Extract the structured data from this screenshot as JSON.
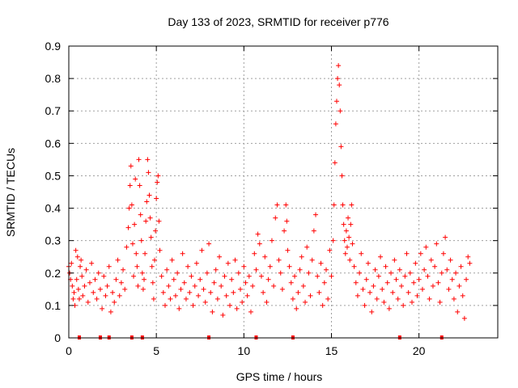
{
  "chart_data": {
    "type": "scatter",
    "title": "Day 133 of 2023, SRMTID for receiver p776",
    "xlabel": "GPS time / hours",
    "ylabel": "SRMTID / TECUs",
    "xlim": [
      0,
      24.5
    ],
    "ylim": [
      0,
      0.9
    ],
    "xticks": [
      0,
      5,
      10,
      15,
      20
    ],
    "xtick_labels": [
      "0",
      "5",
      "10",
      "15",
      "20"
    ],
    "yticks": [
      0,
      0.1,
      0.2,
      0.3,
      0.4,
      0.5,
      0.6,
      0.7,
      0.8,
      0.9
    ],
    "ytick_labels": [
      "0",
      "0.1",
      "0.2",
      "0.3",
      "0.4",
      "0.5",
      "0.6",
      "0.7",
      "0.8",
      "0.9"
    ],
    "grid": true,
    "marker": "+",
    "color": "#ff0000",
    "series": [
      {
        "name": "SRMTID",
        "points": [
          [
            0.0,
            0.22
          ],
          [
            0.05,
            0.2
          ],
          [
            0.1,
            0.18
          ],
          [
            0.15,
            0.23
          ],
          [
            0.2,
            0.16
          ],
          [
            0.25,
            0.12
          ],
          [
            0.3,
            0.14
          ],
          [
            0.35,
            0.1
          ],
          [
            0.4,
            0.27
          ],
          [
            0.45,
            0.18
          ],
          [
            0.5,
            0.25
          ],
          [
            0.55,
            0.15
          ],
          [
            0.6,
            0.12
          ],
          [
            0.65,
            0.22
          ],
          [
            0.7,
            0.24
          ],
          [
            0.75,
            0.19
          ],
          [
            0.8,
            0.13
          ],
          [
            0.9,
            0.16
          ],
          [
            1.0,
            0.21
          ],
          [
            1.1,
            0.11
          ],
          [
            1.2,
            0.17
          ],
          [
            1.3,
            0.23
          ],
          [
            1.4,
            0.14
          ],
          [
            1.5,
            0.18
          ],
          [
            1.6,
            0.12
          ],
          [
            1.7,
            0.2
          ],
          [
            1.8,
            0.15
          ],
          [
            1.9,
            0.09
          ],
          [
            2.0,
            0.19
          ],
          [
            2.1,
            0.13
          ],
          [
            2.2,
            0.16
          ],
          [
            2.3,
            0.22
          ],
          [
            2.4,
            0.08
          ],
          [
            2.5,
            0.14
          ],
          [
            2.6,
            0.11
          ],
          [
            2.7,
            0.18
          ],
          [
            2.8,
            0.24
          ],
          [
            2.9,
            0.13
          ],
          [
            3.0,
            0.17
          ],
          [
            3.1,
            0.21
          ],
          [
            3.2,
            0.15
          ],
          [
            3.3,
            0.28
          ],
          [
            3.4,
            0.34
          ],
          [
            3.45,
            0.4
          ],
          [
            3.5,
            0.47
          ],
          [
            3.55,
            0.53
          ],
          [
            3.6,
            0.41
          ],
          [
            3.65,
            0.29
          ],
          [
            3.7,
            0.19
          ],
          [
            3.75,
            0.35
          ],
          [
            3.8,
            0.49
          ],
          [
            3.85,
            0.26
          ],
          [
            3.9,
            0.22
          ],
          [
            3.95,
            0.16
          ],
          [
            4.0,
            0.55
          ],
          [
            4.05,
            0.47
          ],
          [
            4.1,
            0.38
          ],
          [
            4.15,
            0.3
          ],
          [
            4.2,
            0.2
          ],
          [
            4.25,
            0.15
          ],
          [
            4.3,
            0.18
          ],
          [
            4.35,
            0.26
          ],
          [
            4.4,
            0.36
          ],
          [
            4.45,
            0.42
          ],
          [
            4.5,
            0.55
          ],
          [
            4.55,
            0.51
          ],
          [
            4.6,
            0.44
          ],
          [
            4.65,
            0.37
          ],
          [
            4.7,
            0.31
          ],
          [
            4.75,
            0.22
          ],
          [
            4.8,
            0.17
          ],
          [
            4.85,
            0.12
          ],
          [
            4.9,
            0.24
          ],
          [
            4.95,
            0.33
          ],
          [
            5.0,
            0.43
          ],
          [
            5.05,
            0.48
          ],
          [
            5.1,
            0.5
          ],
          [
            5.15,
            0.36
          ],
          [
            5.2,
            0.27
          ],
          [
            5.3,
            0.19
          ],
          [
            5.4,
            0.14
          ],
          [
            5.5,
            0.1
          ],
          [
            5.6,
            0.21
          ],
          [
            5.7,
            0.16
          ],
          [
            5.8,
            0.12
          ],
          [
            5.9,
            0.24
          ],
          [
            6.0,
            0.18
          ],
          [
            6.1,
            0.13
          ],
          [
            6.2,
            0.2
          ],
          [
            6.3,
            0.09
          ],
          [
            6.4,
            0.15
          ],
          [
            6.5,
            0.26
          ],
          [
            6.6,
            0.17
          ],
          [
            6.7,
            0.12
          ],
          [
            6.8,
            0.22
          ],
          [
            6.9,
            0.14
          ],
          [
            7.0,
            0.19
          ],
          [
            7.1,
            0.1
          ],
          [
            7.2,
            0.16
          ],
          [
            7.3,
            0.23
          ],
          [
            7.4,
            0.13
          ],
          [
            7.5,
            0.18
          ],
          [
            7.6,
            0.27
          ],
          [
            7.7,
            0.15
          ],
          [
            7.8,
            0.11
          ],
          [
            7.9,
            0.2
          ],
          [
            8.0,
            0.29
          ],
          [
            8.1,
            0.14
          ],
          [
            8.2,
            0.08
          ],
          [
            8.3,
            0.17
          ],
          [
            8.4,
            0.21
          ],
          [
            8.5,
            0.12
          ],
          [
            8.6,
            0.25
          ],
          [
            8.7,
            0.16
          ],
          [
            8.8,
            0.07
          ],
          [
            8.9,
            0.19
          ],
          [
            9.0,
            0.13
          ],
          [
            9.1,
            0.23
          ],
          [
            9.2,
            0.1
          ],
          [
            9.3,
            0.18
          ],
          [
            9.4,
            0.14
          ],
          [
            9.5,
            0.24
          ],
          [
            9.6,
            0.09
          ],
          [
            9.7,
            0.2
          ],
          [
            9.8,
            0.15
          ],
          [
            9.9,
            0.11
          ],
          [
            10.0,
            0.22
          ],
          [
            10.1,
            0.17
          ],
          [
            10.2,
            0.13
          ],
          [
            10.3,
            0.19
          ],
          [
            10.4,
            0.08
          ],
          [
            10.5,
            0.16
          ],
          [
            10.6,
            0.26
          ],
          [
            10.7,
            0.21
          ],
          [
            10.8,
            0.32
          ],
          [
            10.9,
            0.29
          ],
          [
            11.0,
            0.19
          ],
          [
            11.1,
            0.14
          ],
          [
            11.2,
            0.25
          ],
          [
            11.3,
            0.11
          ],
          [
            11.4,
            0.18
          ],
          [
            11.5,
            0.22
          ],
          [
            11.6,
            0.3
          ],
          [
            11.7,
            0.16
          ],
          [
            11.8,
            0.37
          ],
          [
            11.9,
            0.41
          ],
          [
            12.0,
            0.24
          ],
          [
            12.1,
            0.2
          ],
          [
            12.2,
            0.15
          ],
          [
            12.3,
            0.33
          ],
          [
            12.4,
            0.41
          ],
          [
            12.45,
            0.36
          ],
          [
            12.5,
            0.27
          ],
          [
            12.6,
            0.22
          ],
          [
            12.7,
            0.17
          ],
          [
            12.8,
            0.12
          ],
          [
            12.9,
            0.19
          ],
          [
            13.0,
            0.09
          ],
          [
            13.1,
            0.14
          ],
          [
            13.2,
            0.21
          ],
          [
            13.3,
            0.25
          ],
          [
            13.4,
            0.16
          ],
          [
            13.5,
            0.11
          ],
          [
            13.6,
            0.28
          ],
          [
            13.7,
            0.2
          ],
          [
            13.8,
            0.13
          ],
          [
            13.9,
            0.24
          ],
          [
            14.0,
            0.33
          ],
          [
            14.1,
            0.38
          ],
          [
            14.2,
            0.19
          ],
          [
            14.3,
            0.14
          ],
          [
            14.4,
            0.23
          ],
          [
            14.5,
            0.1
          ],
          [
            14.6,
            0.17
          ],
          [
            14.7,
            0.21
          ],
          [
            14.8,
            0.12
          ],
          [
            14.9,
            0.27
          ],
          [
            15.0,
            0.19
          ],
          [
            15.1,
            0.3
          ],
          [
            15.15,
            0.41
          ],
          [
            15.2,
            0.54
          ],
          [
            15.25,
            0.66
          ],
          [
            15.3,
            0.73
          ],
          [
            15.35,
            0.8
          ],
          [
            15.4,
            0.84
          ],
          [
            15.45,
            0.78
          ],
          [
            15.5,
            0.7
          ],
          [
            15.55,
            0.59
          ],
          [
            15.6,
            0.5
          ],
          [
            15.65,
            0.41
          ],
          [
            15.7,
            0.35
          ],
          [
            15.75,
            0.3
          ],
          [
            15.8,
            0.26
          ],
          [
            15.85,
            0.33
          ],
          [
            15.9,
            0.28
          ],
          [
            15.95,
            0.37
          ],
          [
            16.0,
            0.31
          ],
          [
            16.05,
            0.24
          ],
          [
            16.1,
            0.35
          ],
          [
            16.15,
            0.41
          ],
          [
            16.2,
            0.29
          ],
          [
            16.3,
            0.22
          ],
          [
            16.4,
            0.17
          ],
          [
            16.5,
            0.13
          ],
          [
            16.6,
            0.2
          ],
          [
            16.7,
            0.26
          ],
          [
            16.8,
            0.15
          ],
          [
            16.9,
            0.1
          ],
          [
            17.0,
            0.18
          ],
          [
            17.1,
            0.23
          ],
          [
            17.2,
            0.14
          ],
          [
            17.3,
            0.08
          ],
          [
            17.4,
            0.16
          ],
          [
            17.5,
            0.21
          ],
          [
            17.6,
            0.12
          ],
          [
            17.7,
            0.19
          ],
          [
            17.8,
            0.25
          ],
          [
            17.9,
            0.15
          ],
          [
            18.0,
            0.11
          ],
          [
            18.1,
            0.22
          ],
          [
            18.2,
            0.17
          ],
          [
            18.3,
            0.09
          ],
          [
            18.4,
            0.2
          ],
          [
            18.5,
            0.14
          ],
          [
            18.6,
            0.24
          ],
          [
            18.7,
            0.18
          ],
          [
            18.8,
            0.12
          ],
          [
            18.9,
            0.21
          ],
          [
            19.0,
            0.16
          ],
          [
            19.1,
            0.1
          ],
          [
            19.2,
            0.19
          ],
          [
            19.3,
            0.26
          ],
          [
            19.4,
            0.14
          ],
          [
            19.5,
            0.2
          ],
          [
            19.6,
            0.11
          ],
          [
            19.7,
            0.17
          ],
          [
            19.8,
            0.23
          ],
          [
            19.9,
            0.13
          ],
          [
            20.0,
            0.18
          ],
          [
            20.1,
            0.26
          ],
          [
            20.2,
            0.15
          ],
          [
            20.3,
            0.21
          ],
          [
            20.4,
            0.28
          ],
          [
            20.5,
            0.19
          ],
          [
            20.6,
            0.12
          ],
          [
            20.7,
            0.24
          ],
          [
            20.8,
            0.16
          ],
          [
            20.9,
            0.22
          ],
          [
            21.0,
            0.29
          ],
          [
            21.1,
            0.17
          ],
          [
            21.2,
            0.11
          ],
          [
            21.3,
            0.2
          ],
          [
            21.4,
            0.26
          ],
          [
            21.5,
            0.31
          ],
          [
            21.6,
            0.21
          ],
          [
            21.7,
            0.15
          ],
          [
            21.8,
            0.24
          ],
          [
            21.9,
            0.18
          ],
          [
            22.0,
            0.12
          ],
          [
            22.1,
            0.2
          ],
          [
            22.2,
            0.08
          ],
          [
            22.3,
            0.16
          ],
          [
            22.4,
            0.22
          ],
          [
            22.5,
            0.13
          ],
          [
            22.6,
            0.06
          ],
          [
            22.7,
            0.18
          ],
          [
            22.8,
            0.25
          ],
          [
            22.9,
            0.23
          ]
        ]
      }
    ],
    "gap_markers_x": [
      0.6,
      1.8,
      2.3,
      3.6,
      4.2,
      8.0,
      10.7,
      12.8,
      18.9,
      21.3
    ]
  }
}
